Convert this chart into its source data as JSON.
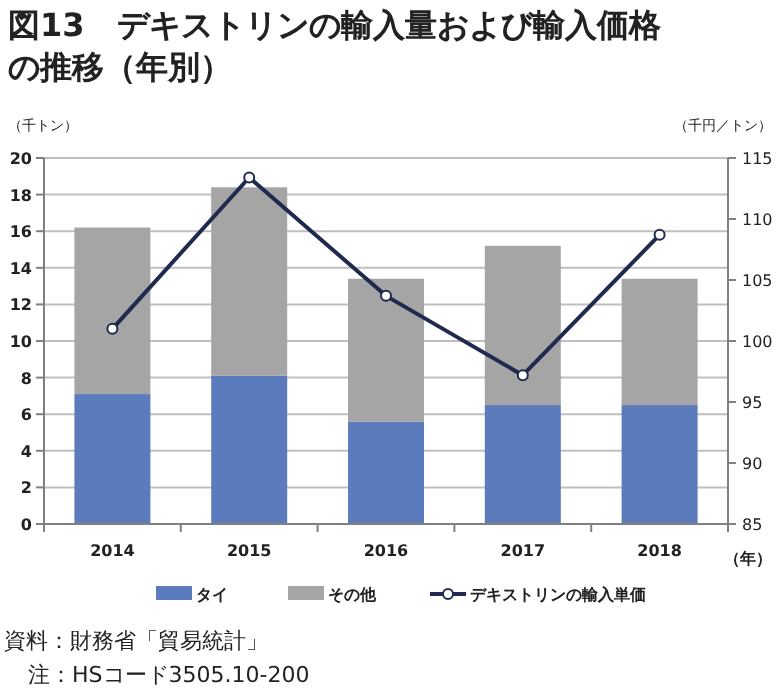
{
  "chart_data": {
    "type": "bar",
    "title": "図13　デキストリンの輸入量および輸入価格の推移（年別）",
    "xlabel": "（年）",
    "ylabel": "（千トン）",
    "y2label": "（千円／トン）",
    "categories": [
      "2014",
      "2015",
      "2016",
      "2017",
      "2018"
    ],
    "series": [
      {
        "name": "タイ",
        "color": "#5b7bbd",
        "values": [
          7.1,
          8.1,
          5.6,
          6.5,
          6.5
        ]
      },
      {
        "name": "その他",
        "color": "#a5a5a5",
        "values": [
          9.1,
          10.3,
          7.8,
          8.7,
          6.9
        ]
      },
      {
        "name": "デキストリンの輸入単価",
        "type": "line",
        "axis": "y2",
        "color": "#1f2a4e",
        "marker": "circle",
        "values": [
          101.0,
          113.4,
          103.7,
          97.2,
          108.7
        ]
      }
    ],
    "stacked": true,
    "ylim": [
      0,
      20
    ],
    "yticks": [
      0,
      2,
      4,
      6,
      8,
      10,
      12,
      14,
      16,
      18,
      20
    ],
    "y2lim": [
      85,
      115
    ],
    "y2ticks": [
      85,
      90,
      95,
      100,
      105,
      110,
      115
    ],
    "grid": "y",
    "legend": "bottom",
    "annotations": [
      "資料：財務省「貿易統計」",
      "注：HSコード3505.10-200"
    ]
  }
}
